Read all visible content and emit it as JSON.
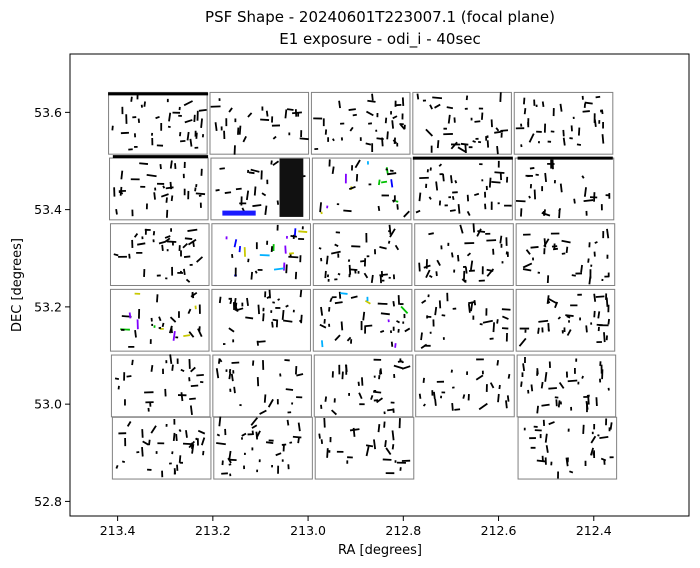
{
  "chart_data": {
    "type": "scatter",
    "title": "PSF Shape - 20240601T223007.1 (focal plane)",
    "subtitle": "E1 exposure - odi_i - 40sec",
    "xlabel": "RA [degrees]",
    "ylabel": "DEC [degrees]",
    "xlim": [
      213.5,
      212.2
    ],
    "ylim": [
      52.77,
      53.72
    ],
    "x_inverted": true,
    "xticks": [
      "213.4",
      "213.2",
      "213.0",
      "212.8",
      "212.6",
      "212.4"
    ],
    "xtick_values": [
      213.4,
      213.2,
      213.0,
      212.8,
      212.6,
      212.4
    ],
    "yticks": [
      "52.8",
      "53.0",
      "53.2",
      "53.4",
      "53.6"
    ],
    "ytick_values": [
      52.8,
      53.0,
      53.2,
      53.4,
      53.6
    ],
    "grid": false,
    "legend": "none",
    "ccd_edge_color": "#808080",
    "whisker_color": "#000000",
    "highlight_colors": [
      "#0000ff",
      "#00b0ff",
      "#7f00ff",
      "#00c000",
      "#c8c800"
    ],
    "ccds": [
      {
        "ra_left": 213.419,
        "ra_right": 213.212,
        "dec_bottom": 53.514,
        "dec_top": 53.641
      },
      {
        "ra_left": 213.206,
        "ra_right": 212.999,
        "dec_bottom": 53.514,
        "dec_top": 53.641
      },
      {
        "ra_left": 212.993,
        "ra_right": 212.786,
        "dec_bottom": 53.514,
        "dec_top": 53.641
      },
      {
        "ra_left": 212.78,
        "ra_right": 212.573,
        "dec_bottom": 53.514,
        "dec_top": 53.641
      },
      {
        "ra_left": 212.567,
        "ra_right": 212.36,
        "dec_bottom": 53.514,
        "dec_top": 53.641
      },
      {
        "ra_left": 213.417,
        "ra_right": 213.21,
        "dec_bottom": 53.379,
        "dec_top": 53.506
      },
      {
        "ra_left": 213.204,
        "ra_right": 212.997,
        "dec_bottom": 53.379,
        "dec_top": 53.506
      },
      {
        "ra_left": 212.991,
        "ra_right": 212.784,
        "dec_bottom": 53.379,
        "dec_top": 53.506
      },
      {
        "ra_left": 212.778,
        "ra_right": 212.571,
        "dec_bottom": 53.379,
        "dec_top": 53.506
      },
      {
        "ra_left": 212.565,
        "ra_right": 212.358,
        "dec_bottom": 53.379,
        "dec_top": 53.506
      },
      {
        "ra_left": 213.415,
        "ra_right": 213.208,
        "dec_bottom": 53.244,
        "dec_top": 53.371
      },
      {
        "ra_left": 213.202,
        "ra_right": 212.995,
        "dec_bottom": 53.244,
        "dec_top": 53.371
      },
      {
        "ra_left": 212.989,
        "ra_right": 212.782,
        "dec_bottom": 53.244,
        "dec_top": 53.371
      },
      {
        "ra_left": 212.776,
        "ra_right": 212.569,
        "dec_bottom": 53.244,
        "dec_top": 53.371
      },
      {
        "ra_left": 212.563,
        "ra_right": 212.356,
        "dec_bottom": 53.244,
        "dec_top": 53.371
      },
      {
        "ra_left": 213.415,
        "ra_right": 213.208,
        "dec_bottom": 53.109,
        "dec_top": 53.236
      },
      {
        "ra_left": 213.202,
        "ra_right": 212.995,
        "dec_bottom": 53.109,
        "dec_top": 53.236
      },
      {
        "ra_left": 212.989,
        "ra_right": 212.782,
        "dec_bottom": 53.109,
        "dec_top": 53.236
      },
      {
        "ra_left": 212.776,
        "ra_right": 212.569,
        "dec_bottom": 53.109,
        "dec_top": 53.236
      },
      {
        "ra_left": 212.563,
        "ra_right": 212.356,
        "dec_bottom": 53.109,
        "dec_top": 53.236
      },
      {
        "ra_left": 213.413,
        "ra_right": 213.206,
        "dec_bottom": 52.974,
        "dec_top": 53.101
      },
      {
        "ra_left": 213.2,
        "ra_right": 212.993,
        "dec_bottom": 52.974,
        "dec_top": 53.101
      },
      {
        "ra_left": 212.987,
        "ra_right": 212.78,
        "dec_bottom": 52.974,
        "dec_top": 53.101
      },
      {
        "ra_left": 212.774,
        "ra_right": 212.567,
        "dec_bottom": 52.974,
        "dec_top": 53.101
      },
      {
        "ra_left": 212.561,
        "ra_right": 212.354,
        "dec_bottom": 52.974,
        "dec_top": 53.101
      },
      {
        "ra_left": 213.411,
        "ra_right": 213.204,
        "dec_bottom": 52.846,
        "dec_top": 52.973
      },
      {
        "ra_left": 213.198,
        "ra_right": 212.991,
        "dec_bottom": 52.846,
        "dec_top": 52.973
      },
      {
        "ra_left": 212.985,
        "ra_right": 212.778,
        "dec_bottom": 52.846,
        "dec_top": 52.973
      },
      {
        "ra_left": 212.559,
        "ra_right": 212.352,
        "dec_bottom": 52.846,
        "dec_top": 52.973
      }
    ],
    "dense_bands": [
      {
        "ra_from": 213.42,
        "ra_to": 213.21,
        "dec": 53.638
      },
      {
        "ra_from": 213.41,
        "ra_to": 213.21,
        "dec": 53.509
      },
      {
        "ra_from": 212.78,
        "ra_to": 212.57,
        "dec": 53.506
      },
      {
        "ra_from": 212.56,
        "ra_to": 212.36,
        "dec": 53.506
      },
      {
        "ra_from": 213.06,
        "ra_to": 213.01,
        "dec": 53.445
      }
    ]
  }
}
